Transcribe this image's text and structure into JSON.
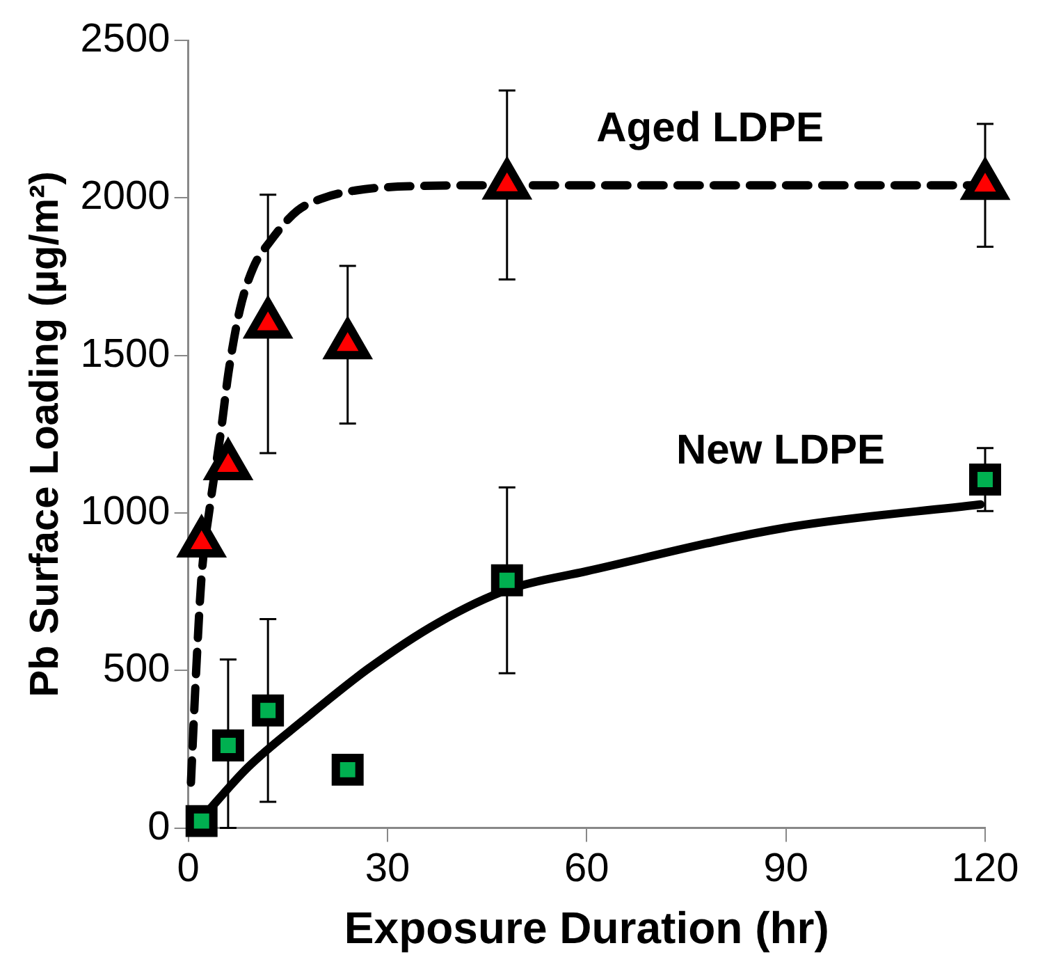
{
  "chart_data": {
    "type": "scatter",
    "xlabel": "Exposure Duration (hr)",
    "ylabel": "Pb Surface Loading (µg/m²)",
    "xlim": [
      0,
      120
    ],
    "xticks": [
      0,
      30,
      60,
      90,
      120
    ],
    "ylim": [
      0,
      2500
    ],
    "yticks": [
      0,
      500,
      1000,
      1500,
      2000,
      2500
    ],
    "grid": false,
    "legend": false,
    "series": [
      {
        "type": "line",
        "color": "#000000",
        "marker": "none",
        "line_style": "dashed",
        "x": [
          0.4,
          1.2,
          2,
          3.3,
          4.9,
          6.1,
          7.8,
          9.8,
          12.3,
          16.4,
          20.4,
          25.3,
          33.5,
          48,
          120
        ],
        "values": [
          144,
          504,
          798,
          1027,
          1256,
          1452,
          1648,
          1779,
          1861,
          1959,
          2000,
          2024,
          2037,
          2040,
          2040
        ]
      },
      {
        "type": "line",
        "color": "#000000",
        "marker": "none",
        "line_style": "solid",
        "x": [
          2,
          9,
          17.2,
          27,
          37.6,
          48.2,
          60,
          89.9,
          119.3
        ],
        "values": [
          30,
          193,
          340,
          504,
          651,
          757,
          815,
          953,
          1027
        ]
      },
      {
        "type": "scatter",
        "name": "Aged LDPE",
        "color": "#ff0000",
        "marker": "triangle",
        "x": [
          2,
          6,
          12,
          24,
          48,
          120
        ],
        "values": [
          905,
          1150,
          1600,
          1534,
          2041,
          2040
        ],
        "errors": [
          null,
          null,
          410,
          250,
          300,
          195
        ]
      },
      {
        "type": "scatter",
        "name": "New LDPE",
        "color": "#00b050",
        "marker": "square",
        "x": [
          2,
          6,
          12,
          24,
          48,
          120
        ],
        "values": [
          22,
          262,
          373,
          185,
          786,
          1106
        ],
        "errors": [
          null,
          [
            0,
            535
          ],
          290,
          null,
          295,
          100
        ]
      }
    ]
  }
}
